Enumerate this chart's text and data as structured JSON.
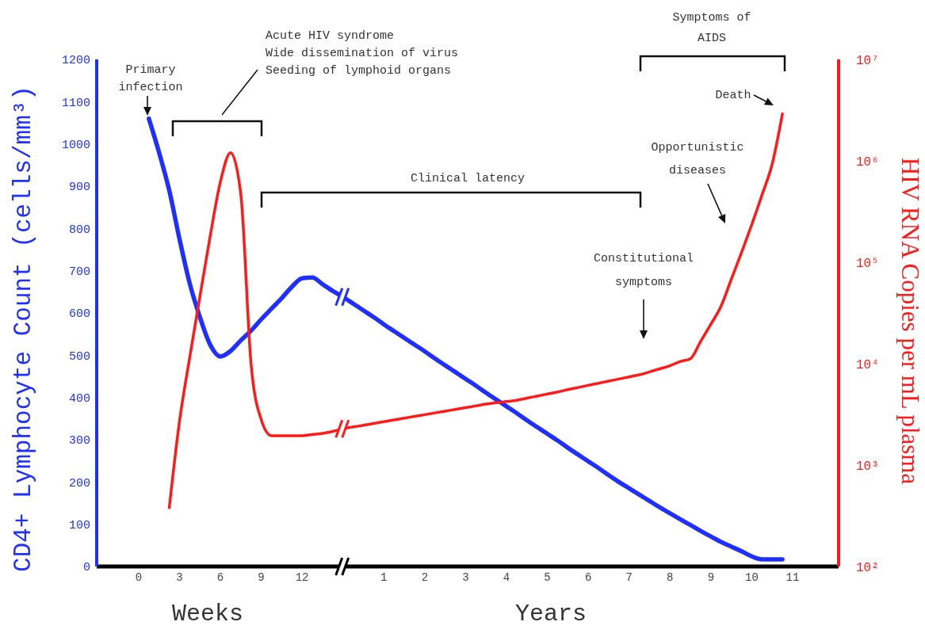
{
  "chart_data": {
    "type": "line",
    "ylabel": "CD4+ Lymphocyte Count (cells/mm³)",
    "y2label": "HIV RNA Copies per mL plasma",
    "categories": [
      "0",
      null,
      null,
      null,
      "3",
      null,
      null,
      null,
      "6",
      null,
      null,
      null,
      "9",
      null,
      null,
      null,
      "12",
      null,
      null,
      null,
      null,
      null,
      null,
      null,
      "1",
      null,
      null,
      null,
      "2",
      null,
      null,
      null,
      "3",
      null,
      null,
      null,
      "4",
      null,
      null,
      null,
      "5",
      null,
      null,
      null,
      "6",
      null,
      null,
      null,
      "7",
      null,
      null,
      null,
      "8",
      null,
      null,
      null,
      "9",
      null,
      null,
      null,
      "10",
      null,
      null,
      null,
      "11"
    ],
    "ylim": [
      0,
      1200
    ],
    "yticks": [
      0,
      100,
      200,
      300,
      400,
      500,
      600,
      700,
      800,
      900,
      1000,
      1100,
      1200
    ],
    "y2lim": [
      100,
      10000000
    ],
    "y2ticks": [
      {
        "value": 100,
        "label": "10²"
      },
      {
        "value": 1000,
        "label": "10³"
      },
      {
        "value": 10000,
        "label": "10⁴"
      },
      {
        "value": 100000,
        "label": "10⁵"
      },
      {
        "value": 1000000,
        "label": "10⁶"
      },
      {
        "value": 10000000,
        "label": "10⁷"
      }
    ],
    "log": "y2",
    "series": [
      {
        "color": "#1f2fff",
        "values": [
          null,
          1060,
          980,
          890,
          775,
          670,
          590,
          525,
          497,
          510,
          535,
          558,
          585,
          610,
          635,
          662,
          682,
          684,
          668,
          652,
          638,
          622,
          606,
          590,
          573,
          557,
          541,
          525,
          509,
          492,
          476,
          460,
          444,
          428,
          411,
          395,
          379,
          363,
          346,
          330,
          314,
          298,
          281,
          265,
          249,
          233,
          216,
          200,
          185,
          170,
          155,
          140,
          126,
          112,
          98,
          84,
          71,
          58,
          47,
          36,
          24,
          17,
          17,
          17,
          null
        ]
      },
      {
        "color": "#ff1a1a",
        "axis": "y2",
        "values": [
          null,
          null,
          null,
          380,
          2700,
          11500,
          46000,
          180000,
          620000,
          1200000,
          470000,
          10000,
          2800,
          1950,
          1950,
          1950,
          1950,
          2000,
          2050,
          2150,
          2280,
          2380,
          2470,
          2570,
          2680,
          2790,
          2900,
          3020,
          3140,
          3270,
          3400,
          3540,
          3680,
          3830,
          3990,
          4120,
          4230,
          4350,
          4570,
          4790,
          5020,
          5260,
          5540,
          5820,
          6110,
          6410,
          6730,
          7060,
          7410,
          7770,
          8300,
          8900,
          9550,
          10500,
          11200,
          16600,
          24500,
          37000,
          68000,
          125000,
          235000,
          460000,
          930000,
          2900000,
          null
        ]
      }
    ],
    "annotations": [
      "Acute HIV syndrome\nWide dissemination of virus\nSeeding of lymphoid organs",
      "Clinical latency",
      "Symptoms of\nAIDS",
      "Primary\ninfection",
      "Death",
      "Opportunistic\ndiseases",
      "Constitutional\nsymptoms",
      "Weeks",
      "Years"
    ]
  }
}
